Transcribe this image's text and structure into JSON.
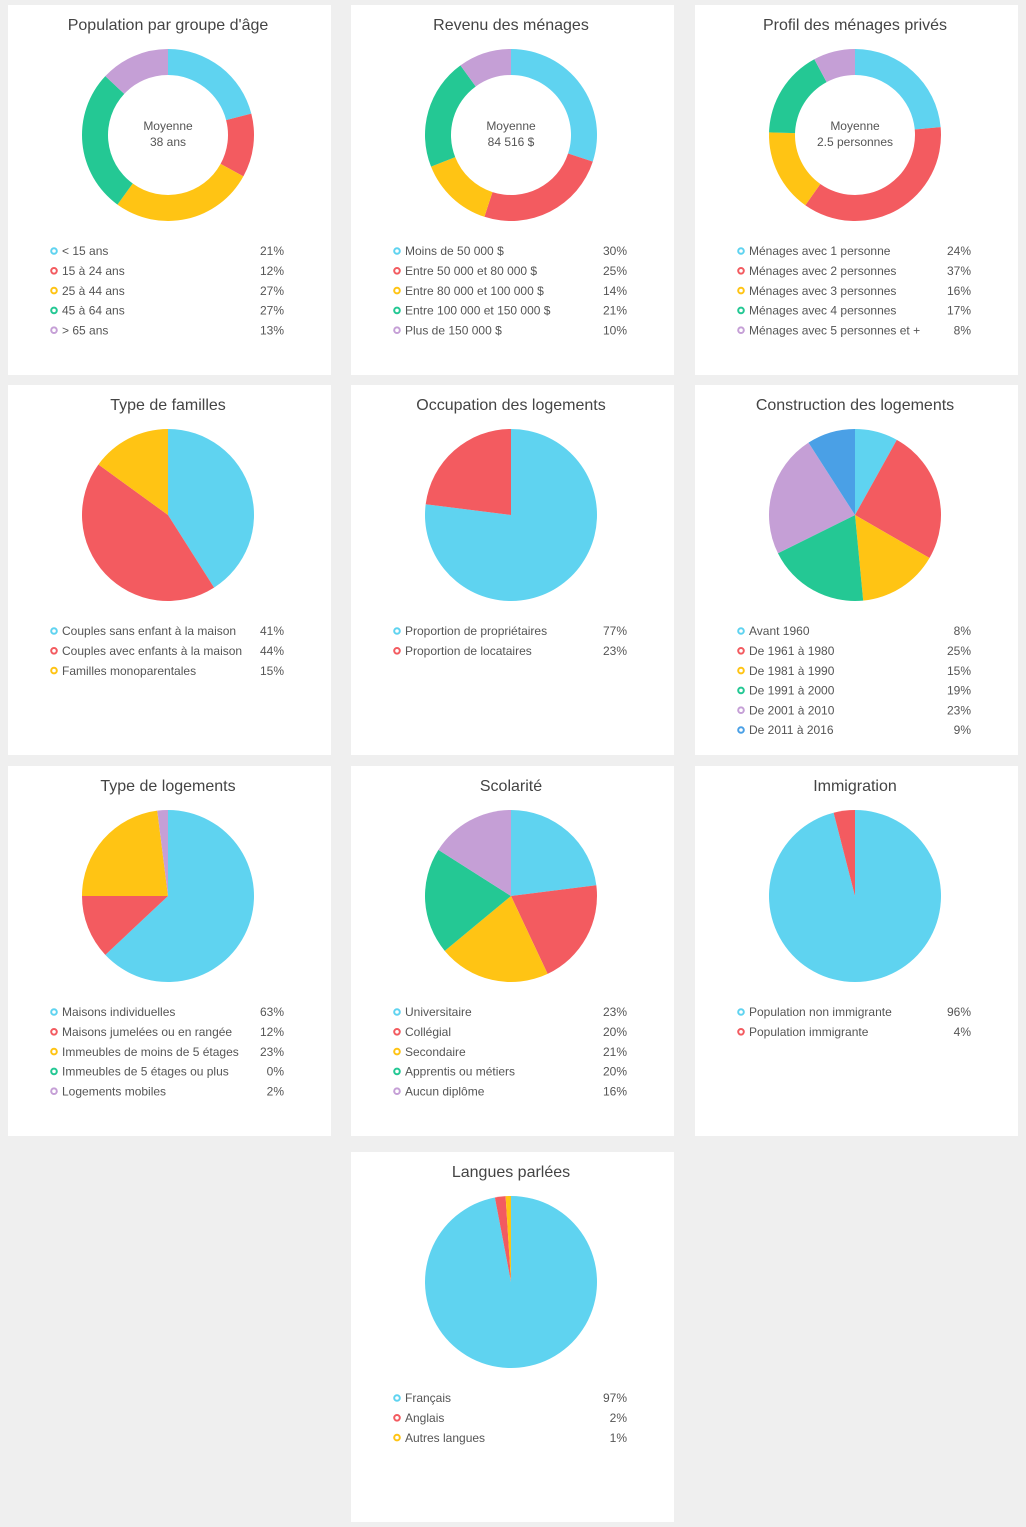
{
  "chart_data": [
    {
      "type": "donut",
      "title": "Population par groupe d'âge",
      "center_text": [
        "Moyenne",
        "38 ans"
      ],
      "categories": [
        "< 15 ans",
        "15 à 24 ans",
        "25 à 44 ans",
        "45 à 64 ans",
        "> 65 ans"
      ],
      "values": [
        21,
        12,
        27,
        27,
        13
      ],
      "value_labels": [
        "21%",
        "12%",
        "27%",
        "27%",
        "13%"
      ],
      "colors": [
        "#5fd3f0",
        "#f35b60",
        "#ffc414",
        "#24c894",
        "#c59fd6"
      ]
    },
    {
      "type": "donut",
      "title": "Revenu des ménages",
      "center_text": [
        "Moyenne",
        "84 516 $"
      ],
      "categories": [
        "Moins de 50 000 $",
        "Entre 50 000 et 80 000 $",
        "Entre 80 000 et 100 000 $",
        "Entre 100 000 et 150 000 $",
        "Plus de 150 000 $"
      ],
      "values": [
        30,
        25,
        14,
        21,
        10
      ],
      "value_labels": [
        "30%",
        "25%",
        "14%",
        "21%",
        "10%"
      ],
      "colors": [
        "#5fd3f0",
        "#f35b60",
        "#ffc414",
        "#24c894",
        "#c59fd6"
      ]
    },
    {
      "type": "donut",
      "title": "Profil des ménages privés",
      "center_text": [
        "Moyenne",
        "2.5 personnes"
      ],
      "categories": [
        "Ménages avec 1 personne",
        "Ménages avec 2 personnes",
        "Ménages avec 3 personnes",
        "Ménages avec 4 personnes",
        "Ménages avec 5 personnes et +"
      ],
      "values": [
        24,
        37,
        16,
        17,
        8
      ],
      "value_labels": [
        "24%",
        "37%",
        "16%",
        "17%",
        "8%"
      ],
      "colors": [
        "#5fd3f0",
        "#f35b60",
        "#ffc414",
        "#24c894",
        "#c59fd6"
      ]
    },
    {
      "type": "pie",
      "title": "Type de familles",
      "categories": [
        "Couples sans enfant à la maison",
        "Couples avec enfants à la maison",
        "Familles monoparentales"
      ],
      "values": [
        41,
        44,
        15
      ],
      "value_labels": [
        "41%",
        "44%",
        "15%"
      ],
      "colors": [
        "#5fd3f0",
        "#f35b60",
        "#ffc414"
      ]
    },
    {
      "type": "pie",
      "title": "Occupation des logements",
      "categories": [
        "Proportion de propriétaires",
        "Proportion de locataires"
      ],
      "values": [
        77,
        23
      ],
      "value_labels": [
        "77%",
        "23%"
      ],
      "colors": [
        "#5fd3f0",
        "#f35b60"
      ]
    },
    {
      "type": "pie",
      "title": "Construction des logements",
      "categories": [
        "Avant 1960",
        "De 1961 à 1980",
        "De 1981 à 1990",
        "De 1991 à 2000",
        "De 2001 à 2010",
        "De 2011 à 2016"
      ],
      "values": [
        8,
        25,
        15,
        19,
        23,
        9
      ],
      "value_labels": [
        "8%",
        "25%",
        "15%",
        "19%",
        "23%",
        "9%"
      ],
      "colors": [
        "#5fd3f0",
        "#f35b60",
        "#ffc414",
        "#24c894",
        "#c59fd6",
        "#4aa0e6"
      ]
    },
    {
      "type": "pie",
      "title": "Type de logements",
      "categories": [
        "Maisons individuelles",
        "Maisons jumelées ou en rangée",
        "Immeubles de moins de 5 étages",
        "Immeubles de 5 étages ou plus",
        "Logements mobiles"
      ],
      "values": [
        63,
        12,
        23,
        0,
        2
      ],
      "value_labels": [
        "63%",
        "12%",
        "23%",
        "0%",
        "2%"
      ],
      "colors": [
        "#5fd3f0",
        "#f35b60",
        "#ffc414",
        "#24c894",
        "#c59fd6"
      ]
    },
    {
      "type": "pie",
      "title": "Scolarité",
      "categories": [
        "Universitaire",
        "Collégial",
        "Secondaire",
        "Apprentis ou métiers",
        "Aucun diplôme"
      ],
      "values": [
        23,
        20,
        21,
        20,
        16
      ],
      "value_labels": [
        "23%",
        "20%",
        "21%",
        "20%",
        "16%"
      ],
      "colors": [
        "#5fd3f0",
        "#f35b60",
        "#ffc414",
        "#24c894",
        "#c59fd6"
      ]
    },
    {
      "type": "pie",
      "title": "Immigration",
      "categories": [
        "Population non immigrante",
        "Population immigrante"
      ],
      "values": [
        96,
        4
      ],
      "value_labels": [
        "96%",
        "4%"
      ],
      "colors": [
        "#5fd3f0",
        "#f35b60"
      ]
    },
    {
      "type": "pie",
      "title": "Langues parlées",
      "categories": [
        "Français",
        "Anglais",
        "Autres langues"
      ],
      "values": [
        97,
        2,
        1
      ],
      "value_labels": [
        "97%",
        "2%",
        "1%"
      ],
      "colors": [
        "#5fd3f0",
        "#f35b60",
        "#ffc414"
      ]
    }
  ]
}
